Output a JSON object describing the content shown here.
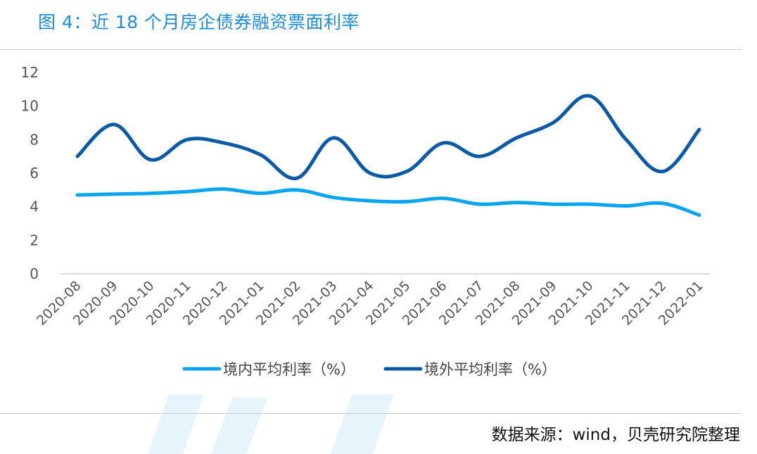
{
  "title": "图 4：近 18 个月房企债券融资票面利率",
  "source": "数据来源：wind，贝壳研究院整理",
  "colors": {
    "domestic": "#0aa5ef",
    "overseas": "#0a5aa8",
    "title": "#1a8cd8"
  },
  "chart_data": {
    "type": "line",
    "categories": [
      "2020-08",
      "2020-09",
      "2020-10",
      "2020-11",
      "2020-12",
      "2021-01",
      "2021-02",
      "2021-03",
      "2021-04",
      "2021-05",
      "2021-06",
      "2021-07",
      "2021-08",
      "2021-09",
      "2021-10",
      "2021-11",
      "2021-12",
      "2022-01"
    ],
    "series": [
      {
        "name": "境内平均利率（%）",
        "values": [
          4.7,
          4.75,
          4.8,
          4.9,
          5.05,
          4.8,
          5.0,
          4.55,
          4.35,
          4.3,
          4.5,
          4.15,
          4.25,
          4.15,
          4.15,
          4.05,
          4.2,
          3.5
        ]
      },
      {
        "name": "境外平均利率（%）",
        "values": [
          7.0,
          8.9,
          6.8,
          8.0,
          7.8,
          7.1,
          5.7,
          8.1,
          6.0,
          6.1,
          7.8,
          7.0,
          8.1,
          9.0,
          10.6,
          8.0,
          6.1,
          8.6
        ]
      }
    ],
    "yticks": [
      "0",
      "2",
      "4",
      "6",
      "8",
      "10",
      "12"
    ],
    "ylim": [
      0,
      12
    ],
    "xlabel": "",
    "ylabel": "",
    "legend": "bottom-center",
    "grid": false
  }
}
